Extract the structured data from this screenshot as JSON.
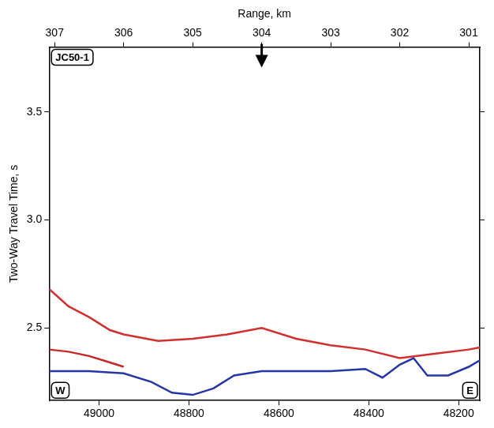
{
  "chart_data": {
    "type": "line",
    "xlabel": "Range, km",
    "ylabel": "Two-Way Travel Time, s",
    "xlim": [
      307.08,
      300.84
    ],
    "xticks": [
      307,
      306,
      305,
      304,
      303,
      302,
      301
    ],
    "x2lim": [
      49111,
      48153
    ],
    "x2ticks": [
      49000,
      48800,
      48600,
      48400,
      48200
    ],
    "ylim": [
      2.164,
      3.8
    ],
    "yticks": [
      2.5,
      {
        "value": 3,
        "label": "3.0"
      },
      3.5
    ],
    "grid": false,
    "series": [
      {
        "color": "#2436a8",
        "x": [
          307.08,
          306.5,
          306,
          305.6,
          305.3,
          305.0,
          304.7,
          304.4,
          304,
          303.5,
          303,
          302.5,
          302.25,
          302.0,
          301.8,
          301.6,
          301.3,
          301.0,
          300.84
        ],
        "values": [
          2.3,
          2.3,
          2.29,
          2.25,
          2.2,
          2.19,
          2.22,
          2.28,
          2.3,
          2.3,
          2.3,
          2.31,
          2.27,
          2.33,
          2.36,
          2.28,
          2.28,
          2.32,
          2.35
        ]
      },
      {
        "color": "#c62828",
        "x": [
          307.08,
          306.8,
          306.5,
          306.2,
          306.0
        ],
        "values": [
          2.4,
          2.39,
          2.37,
          2.34,
          2.32
        ]
      },
      {
        "color": "#d32f2f",
        "x": [
          307.08,
          306.8,
          306.5,
          306.2,
          306,
          305.5,
          305,
          304.5,
          304,
          303.5,
          303,
          302.5,
          302,
          301.5,
          301,
          300.84
        ],
        "values": [
          2.68,
          2.6,
          2.55,
          2.49,
          2.47,
          2.44,
          2.45,
          2.47,
          2.5,
          2.45,
          2.42,
          2.4,
          2.36,
          2.38,
          2.4,
          2.41
        ]
      }
    ],
    "label": "JC50-1",
    "corner_labels": {
      "left": "W",
      "right": "E"
    },
    "arrow": {
      "x": 304
    }
  }
}
